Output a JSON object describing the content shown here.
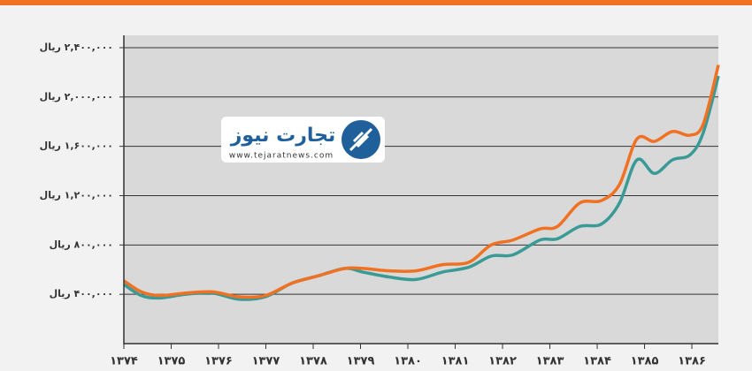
{
  "chart_data": {
    "type": "line",
    "brand": "تجارت نیوز",
    "website": "www.tejaratnews.com",
    "x": [
      1374,
      1374.37,
      1374.75,
      1375.31,
      1375.87,
      1376.43,
      1376.99,
      1377.55,
      1378.11,
      1378.67,
      1379.05,
      1379.61,
      1380.17,
      1380.73,
      1381.29,
      1381.76,
      1382.22,
      1382.79,
      1383.16,
      1383.63,
      1384.09,
      1384.47,
      1384.84,
      1385.21,
      1385.59,
      1385.96,
      1386.24,
      1386.56
    ],
    "series": [
      {
        "color": "#f07122",
        "values": [
          510000,
          420000,
          390000,
          410000,
          420000,
          380000,
          390000,
          490000,
          550000,
          610000,
          610000,
          590000,
          590000,
          640000,
          660000,
          800000,
          840000,
          930000,
          950000,
          1140000,
          1160000,
          1290000,
          1660000,
          1640000,
          1720000,
          1690000,
          1780000,
          2260000
        ]
      },
      {
        "color": "#3a9a96",
        "values": [
          480000,
          390000,
          370000,
          400000,
          410000,
          360000,
          380000,
          490000,
          550000,
          610000,
          580000,
          540000,
          520000,
          580000,
          620000,
          710000,
          720000,
          840000,
          850000,
          950000,
          970000,
          1140000,
          1490000,
          1380000,
          1490000,
          1530000,
          1710000,
          2170000
        ]
      }
    ],
    "xlim": [
      1374,
      1386.56
    ],
    "ylim": [
      0,
      2500000
    ],
    "xticks": [
      {
        "value": 1374,
        "label": "۱۳۷۴"
      },
      {
        "value": 1375,
        "label": "۱۳۷۵"
      },
      {
        "value": 1376,
        "label": "۱۳۷۶"
      },
      {
        "value": 1377,
        "label": "۱۳۷۷"
      },
      {
        "value": 1378,
        "label": "۱۳۷۸"
      },
      {
        "value": 1379,
        "label": "۱۳۷۹"
      },
      {
        "value": 1380,
        "label": "۱۳۸۰"
      },
      {
        "value": 1381,
        "label": "۱۳۸۱"
      },
      {
        "value": 1382,
        "label": "۱۳۸۲"
      },
      {
        "value": 1383,
        "label": "۱۳۸۳"
      },
      {
        "value": 1384,
        "label": "۱۳۸۴"
      },
      {
        "value": 1385,
        "label": "۱۳۸۵"
      },
      {
        "value": 1386,
        "label": "۱۳۸۶"
      }
    ],
    "yticks": [
      {
        "value": 400000,
        "label": "۴۰۰,۰۰۰ ریال"
      },
      {
        "value": 800000,
        "label": "۸۰۰,۰۰۰ ریال"
      },
      {
        "value": 1200000,
        "label": "۱,۲۰۰,۰۰۰ ریال"
      },
      {
        "value": 1600000,
        "label": "۱,۶۰۰,۰۰۰ ریال"
      },
      {
        "value": 2000000,
        "label": "۲,۰۰۰,۰۰۰ ریال"
      },
      {
        "value": 2400000,
        "label": "۲,۴۰۰,۰۰۰ ریال"
      }
    ],
    "grid": true
  }
}
